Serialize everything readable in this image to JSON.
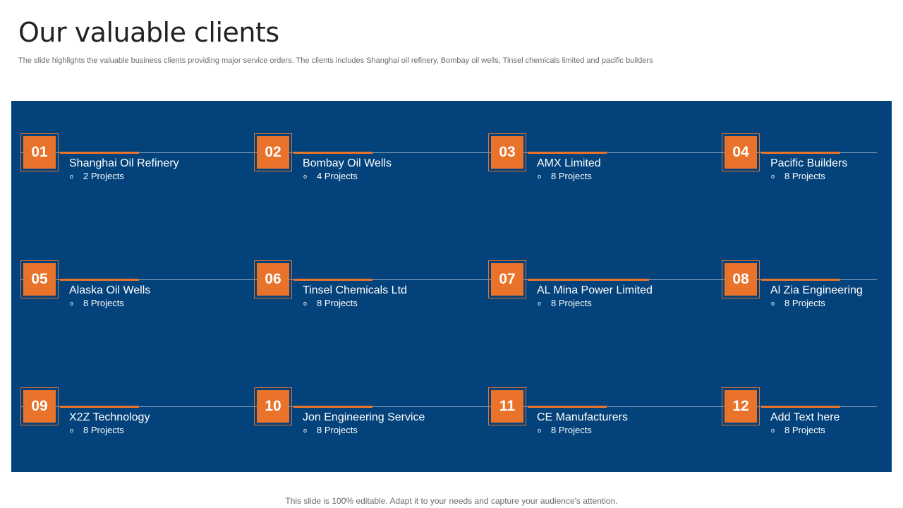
{
  "title": "Our valuable clients",
  "subtitle": "The slide highlights the valuable business clients providing major service orders. The clients includes Shanghai oil refinery, Bombay oil wells, Tinsel chemicals limited and pacific builders",
  "bullet_glyph": "o",
  "clients": [
    {
      "number": "01",
      "name": "Shanghai Oil Refinery",
      "projects": "2 Projects"
    },
    {
      "number": "02",
      "name": "Bombay Oil Wells",
      "projects": "4 Projects"
    },
    {
      "number": "03",
      "name": "AMX Limited",
      "projects": "8 Projects"
    },
    {
      "number": "04",
      "name": "Pacific Builders",
      "projects": "8 Projects"
    },
    {
      "number": "05",
      "name": "Alaska Oil Wells",
      "projects": "8 Projects"
    },
    {
      "number": "06",
      "name": "Tinsel Chemicals Ltd",
      "projects": "8 Projects"
    },
    {
      "number": "07",
      "name": "AL Mina Power Limited",
      "projects": "8 Projects"
    },
    {
      "number": "08",
      "name": "Al Zia Engineering",
      "projects": "8 Projects"
    },
    {
      "number": "09",
      "name": "X2Z Technology",
      "projects": "8 Projects"
    },
    {
      "number": "10",
      "name": "Jon Engineering Service",
      "projects": "8 Projects"
    },
    {
      "number": "11",
      "name": "CE Manufacturers",
      "projects": "8 Projects"
    },
    {
      "number": "12",
      "name": "Add Text here",
      "projects": "8 Projects"
    }
  ],
  "footer": "This slide is 100% editable. Adapt it to your needs and capture your audience's attention.",
  "colors": {
    "panel": "#03427a",
    "accent": "#e9732a",
    "text_on_panel": "#ffffff"
  }
}
